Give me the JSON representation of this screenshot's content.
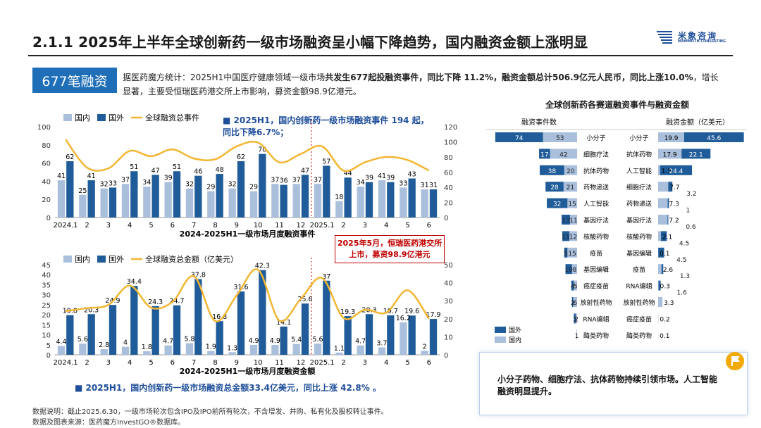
{
  "header": {
    "title": "2.1.1 2025年上半年全球创新药一级市场融资呈小幅下降趋势，国内融资金额上涨明显",
    "logo_text": "米象咨询",
    "logo_sub": "MAMMOTH CONSULTING"
  },
  "badge": "677笔融资",
  "summary": {
    "p1": "据医药魔方统计：2025H1中国医疗健康领域一级市场",
    "b1": "共发生677起投融资事件，同比下降 11.2%，融资金额总计506.9亿元人民币，同比上涨10.0%",
    "p2": "，增长显著，主要受恒瑞医药港交所上市影响，募资金额98.9亿港元。"
  },
  "callout1": "■ 2025H1，国内创新药一级市场融资事件 194 起，同比下降6.7%；",
  "callout2": "2025年5月，恒瑞医药港交所上市，募资98.9亿港元",
  "bottom_note": "■ 2025H1，国内创新药一级市场融资总金额33.4亿美元，同比上涨 42.8% 。",
  "footer": {
    "line1": "数据说明：截止2025.6.30，一级市场轮次包含IPO及IPO前所有轮次，不含增发、并购、私有化及股权转让事件。",
    "line2": "数据及图表来源：医药魔方InvestGO®数据库。"
  },
  "conclusion": "小分子药物、细胞疗法、抗体药物持续引领市场。人工智能融资明显提升。",
  "colors": {
    "domestic": "#a9bfdc",
    "foreign": "#1f5c99",
    "line": "#f2b632",
    "badge": "#1f6fb8"
  },
  "chart_data": [
    {
      "type": "bar",
      "title": "2024-2025H1一级市场月度融资事件",
      "categories": [
        "2024.1",
        "2",
        "3",
        "4",
        "5",
        "6",
        "7",
        "8",
        "9",
        "10",
        "11",
        "12",
        "2025.1",
        "2",
        "3",
        "4",
        "5",
        "6"
      ],
      "legend": [
        "国内",
        "国外",
        "全球融资总事件"
      ],
      "series": [
        {
          "name": "国内",
          "values": [
            41,
            25,
            32,
            37,
            34,
            39,
            32,
            29,
            32,
            29,
            37,
            37,
            37,
            18,
            34,
            41,
            33,
            31
          ]
        },
        {
          "name": "国外",
          "values": [
            62,
            41,
            33,
            51,
            47,
            51,
            46,
            48,
            62,
            70,
            36,
            47,
            57,
            44,
            39,
            39,
            43,
            31
          ]
        },
        {
          "name": "全球融资总事件",
          "axis": "right",
          "values": [
            103,
            66,
            65,
            88,
            81,
            90,
            78,
            77,
            94,
            99,
            73,
            84,
            94,
            62,
            73,
            80,
            76,
            62
          ]
        }
      ],
      "ylim": [
        0,
        100
      ],
      "y2lim": [
        0,
        120
      ],
      "yticks": [
        0,
        20,
        40,
        60,
        80,
        100
      ],
      "y2ticks": [
        0,
        20,
        40,
        60,
        80,
        100,
        120
      ]
    },
    {
      "type": "bar",
      "title": "2024-2025H1一级市场月度融资金额",
      "categories": [
        "2024.1",
        "2",
        "3",
        "4",
        "5",
        "6",
        "7",
        "8",
        "9",
        "10",
        "11",
        "12",
        "2025.1",
        "2",
        "3",
        "4",
        "5",
        "6"
      ],
      "legend": [
        "国内",
        "国外",
        "全球融资总金额（亿美元）"
      ],
      "series": [
        {
          "name": "国内",
          "values": [
            4.4,
            5.6,
            2.8,
            4.0,
            1.8,
            4.7,
            5.8,
            1.9,
            1.3,
            4.9,
            4.9,
            5.4,
            5.6,
            1.1,
            4.7,
            3.7,
            16.2,
            2.0
          ]
        },
        {
          "name": "国外",
          "values": [
            19.8,
            20.3,
            24.9,
            34.4,
            24.3,
            24.7,
            37.8,
            16.8,
            31.6,
            42.3,
            14.1,
            25.6,
            37.0,
            19.3,
            20.3,
            19.7,
            19.6,
            17.9
          ]
        },
        {
          "name": "全球融资总金额（亿美元）",
          "axis": "right",
          "values": [
            24.2,
            25.9,
            27.7,
            38.4,
            26.1,
            29.4,
            43.6,
            18.7,
            32.9,
            47.2,
            19.0,
            31.0,
            42.6,
            20.4,
            25.0,
            23.4,
            35.8,
            19.9
          ]
        }
      ],
      "ylim": [
        0,
        45
      ],
      "y2lim": [
        0,
        50
      ],
      "yticks": [
        0,
        5,
        10,
        15,
        20,
        25,
        30,
        35,
        40,
        45
      ],
      "y2ticks": [
        0,
        10,
        20,
        30,
        40,
        50
      ]
    },
    {
      "type": "bar",
      "title": "全球创新药各赛道融资事件与融资金额",
      "left_header": "融资事件数",
      "right_header": "融资金额（亿美元）",
      "legend": [
        "国外",
        "国内"
      ],
      "events": [
        {
          "cat": "小分子",
          "dom": 53,
          "for": 74
        },
        {
          "cat": "细胞疗法",
          "dom": 42,
          "for": 17
        },
        {
          "cat": "抗体药物",
          "dom": 20,
          "for": 38
        },
        {
          "cat": "药物递送",
          "dom": 21,
          "for": 28
        },
        {
          "cat": "人工智能",
          "dom": 15,
          "for": 32
        },
        {
          "cat": "基因疗法",
          "dom": 11,
          "for": 13
        },
        {
          "cat": "核酸药物",
          "dom": 12,
          "for": 11
        },
        {
          "cat": "疫苗",
          "dom": 15,
          "for": 5
        },
        {
          "cat": "基因编辑",
          "dom": 8,
          "for": 10
        },
        {
          "cat": "癌症疫苗",
          "dom": 5,
          "for": 4
        },
        {
          "cat": "放射性药物",
          "dom": 6,
          "for": 2
        },
        {
          "cat": "RNA编辑",
          "dom": 2,
          "for": 3
        },
        {
          "cat": "酶类药物",
          "dom": 1,
          "for": 0
        }
      ],
      "amounts": [
        {
          "cat": "小分子",
          "dom": 19.9,
          "for": 45.6
        },
        {
          "cat": "抗体药物",
          "dom": 17.9,
          "for": 22.1
        },
        {
          "cat": "人工智能",
          "dom": 1.5,
          "for": 24.4
        },
        {
          "cat": "细胞疗法",
          "dom": 7.7,
          "for": 3.2
        },
        {
          "cat": "药物递送",
          "dom": 7.3,
          "for": 1.0
        },
        {
          "cat": "基因疗法",
          "dom": 7.2,
          "for": 0.6
        },
        {
          "cat": "核酸药物",
          "dom": 2.1,
          "for": 4.5
        },
        {
          "cat": "基因编辑",
          "dom": 0.1,
          "for": 4.5
        },
        {
          "cat": "疫苗",
          "dom": 2.6,
          "for": 1.3
        },
        {
          "cat": "RNA编辑",
          "dom": 0.3,
          "for": 1.6
        },
        {
          "cat": "放射性药物",
          "dom": 3.3,
          "for": 0
        },
        {
          "cat": "癌症疫苗",
          "dom": 0.2,
          "for": 0
        },
        {
          "cat": "酶类药物",
          "dom": 0.1,
          "for": 0
        }
      ]
    }
  ]
}
